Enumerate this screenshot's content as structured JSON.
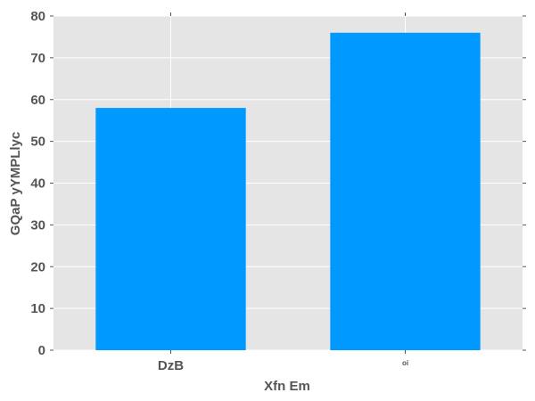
{
  "chart_data": {
    "type": "bar",
    "categories": [
      "DzB",
      "oi"
    ],
    "values": [
      58,
      76
    ],
    "xlabel": "Xfn Em",
    "ylabel": "GQaP yYMPLlyc",
    "ylim": [
      0,
      80
    ],
    "yticks": [
      0,
      10,
      20,
      30,
      40,
      50,
      60,
      70,
      80
    ],
    "grid": true,
    "colors": {
      "bar": "#0099ff",
      "plot_background": "#e5e5e5",
      "grid": "#ffffff",
      "text": "#555555"
    }
  }
}
